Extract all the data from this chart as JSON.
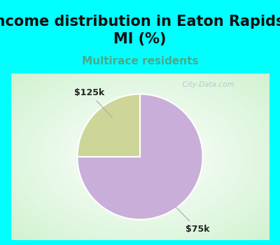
{
  "title": "Income distribution in Eaton Rapids,\nMI (%)",
  "subtitle": "Multirace residents",
  "slices": [
    75.0,
    25.0
  ],
  "labels": [
    "$75k",
    "$125k"
  ],
  "colors": [
    "#c9aed9",
    "#cdd598"
  ],
  "start_angle": 90,
  "title_fontsize": 15,
  "subtitle_fontsize": 11,
  "subtitle_color": "#4aaa88",
  "bg_color_top": "#00ffff",
  "watermark": "  City-Data.com",
  "label_fontsize": 9,
  "label_color": "#222222",
  "chart_border_color": "#00ffff",
  "chart_border_lw": 4
}
